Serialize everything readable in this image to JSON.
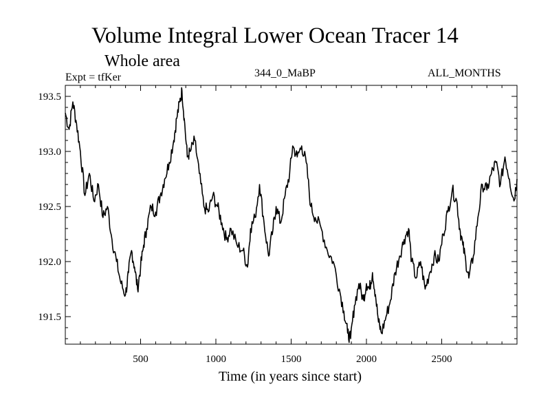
{
  "chart_data": {
    "type": "line",
    "title": "Volume Integral Lower Ocean Tracer 14",
    "subtitle": "Whole area",
    "annotations": {
      "left": "Expt = tfKer",
      "center": "344_0_MaBP",
      "right": "ALL_MONTHS"
    },
    "xlabel": "Time (in years since start)",
    "ylabel": "",
    "xlim": [
      0,
      3000
    ],
    "ylim": [
      191.25,
      193.6
    ],
    "xticks": [
      500,
      1000,
      1500,
      2000,
      2500
    ],
    "xtick_labels": [
      "500",
      "1000",
      "1500",
      "2000",
      "2500"
    ],
    "yticks": [
      191.5,
      192.0,
      192.5,
      193.0,
      193.5
    ],
    "ytick_labels": [
      "191.5",
      "192.0",
      "192.5",
      "193.0",
      "193.5"
    ],
    "grid": false,
    "series": [
      {
        "color": "#000000",
        "x": [
          0,
          25,
          50,
          75,
          100,
          130,
          160,
          190,
          220,
          250,
          280,
          310,
          340,
          370,
          400,
          420,
          440,
          460,
          480,
          500,
          520,
          540,
          570,
          600,
          630,
          660,
          690,
          720,
          740,
          760,
          775,
          790,
          810,
          830,
          860,
          890,
          920,
          950,
          980,
          1010,
          1040,
          1070,
          1100,
          1140,
          1180,
          1210,
          1230,
          1260,
          1290,
          1320,
          1350,
          1380,
          1400,
          1430,
          1460,
          1490,
          1510,
          1540,
          1570,
          1600,
          1630,
          1660,
          1700,
          1740,
          1780,
          1820,
          1850,
          1875,
          1895,
          1920,
          1950,
          1980,
          2000,
          2020,
          2040,
          2060,
          2080,
          2100,
          2130,
          2160,
          2190,
          2220,
          2250,
          2280,
          2300,
          2330,
          2360,
          2390,
          2420,
          2450,
          2480,
          2510,
          2540,
          2570,
          2600,
          2620,
          2640,
          2660,
          2680,
          2710,
          2740,
          2770,
          2800,
          2830,
          2860,
          2890,
          2920,
          2950,
          2980,
          3000
        ],
        "y": [
          193.35,
          193.2,
          193.45,
          193.25,
          193.0,
          192.6,
          192.8,
          192.55,
          192.7,
          192.4,
          192.5,
          192.2,
          192.0,
          191.8,
          191.7,
          191.9,
          192.1,
          191.95,
          191.75,
          191.95,
          192.15,
          192.3,
          192.5,
          192.45,
          192.6,
          192.75,
          192.9,
          193.1,
          193.3,
          193.45,
          193.55,
          193.3,
          192.95,
          193.0,
          193.1,
          192.8,
          192.5,
          192.45,
          192.6,
          192.5,
          192.35,
          192.2,
          192.3,
          192.15,
          192.1,
          191.95,
          192.3,
          192.4,
          192.7,
          192.35,
          192.05,
          192.3,
          192.5,
          192.35,
          192.6,
          192.8,
          193.05,
          192.95,
          193.05,
          192.9,
          192.5,
          192.4,
          192.3,
          192.1,
          192.0,
          191.75,
          191.55,
          191.35,
          191.3,
          191.6,
          191.8,
          191.65,
          191.8,
          191.75,
          191.9,
          191.7,
          191.45,
          191.35,
          191.5,
          191.65,
          191.9,
          192.05,
          192.2,
          192.3,
          192.0,
          191.85,
          192.0,
          191.75,
          191.9,
          192.05,
          192.0,
          192.25,
          192.45,
          192.65,
          192.55,
          192.3,
          192.15,
          192.0,
          191.85,
          192.05,
          192.4,
          192.7,
          192.65,
          192.8,
          192.9,
          192.7,
          192.95,
          192.75,
          192.55,
          192.75
        ]
      }
    ]
  }
}
